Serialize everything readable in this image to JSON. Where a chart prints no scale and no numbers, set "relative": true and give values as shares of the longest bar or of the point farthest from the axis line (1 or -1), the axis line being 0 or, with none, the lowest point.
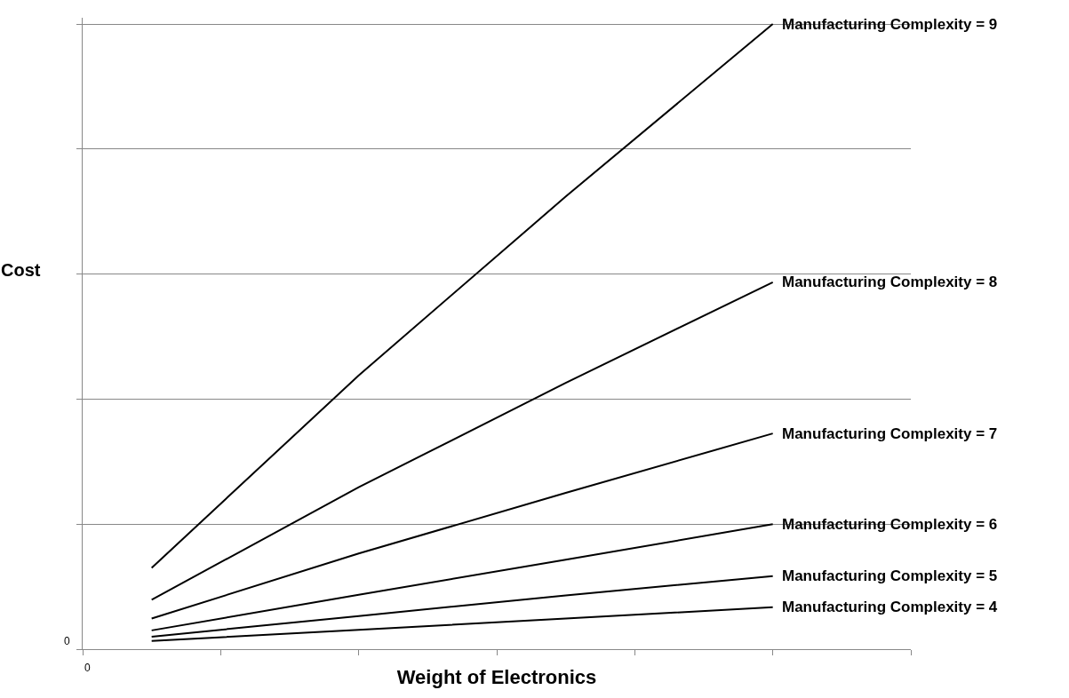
{
  "chart_data": {
    "type": "line",
    "relative": true,
    "xlabel": "Weight of Electronics",
    "ylabel": "Cost",
    "categories": [
      null,
      null,
      null,
      null
    ],
    "annotations": [
      "0",
      "0"
    ],
    "grid": "y",
    "legend": false,
    "marker": "none",
    "line_style": "solid",
    "series": [
      {
        "name": "Manufacturing Complexity = 9",
        "color": "#000000",
        "values": [
          0.13,
          0.438,
          0.724,
          1.0
        ]
      },
      {
        "name": "Manufacturing Complexity = 8",
        "color": "#000000",
        "values": [
          0.079,
          0.259,
          0.426,
          0.587
        ]
      },
      {
        "name": "Manufacturing Complexity = 7",
        "color": "#000000",
        "values": [
          0.049,
          0.153,
          0.25,
          0.345
        ]
      },
      {
        "name": "Manufacturing Complexity = 6",
        "color": "#000000",
        "values": [
          0.03,
          0.087,
          0.143,
          0.2
        ]
      },
      {
        "name": "Manufacturing Complexity = 5",
        "color": "#000000",
        "values": [
          0.02,
          0.053,
          0.086,
          0.117
        ]
      },
      {
        "name": "Manufacturing Complexity = 4",
        "color": "#000000",
        "values": [
          0.013,
          0.031,
          0.049,
          0.067
        ]
      }
    ]
  }
}
